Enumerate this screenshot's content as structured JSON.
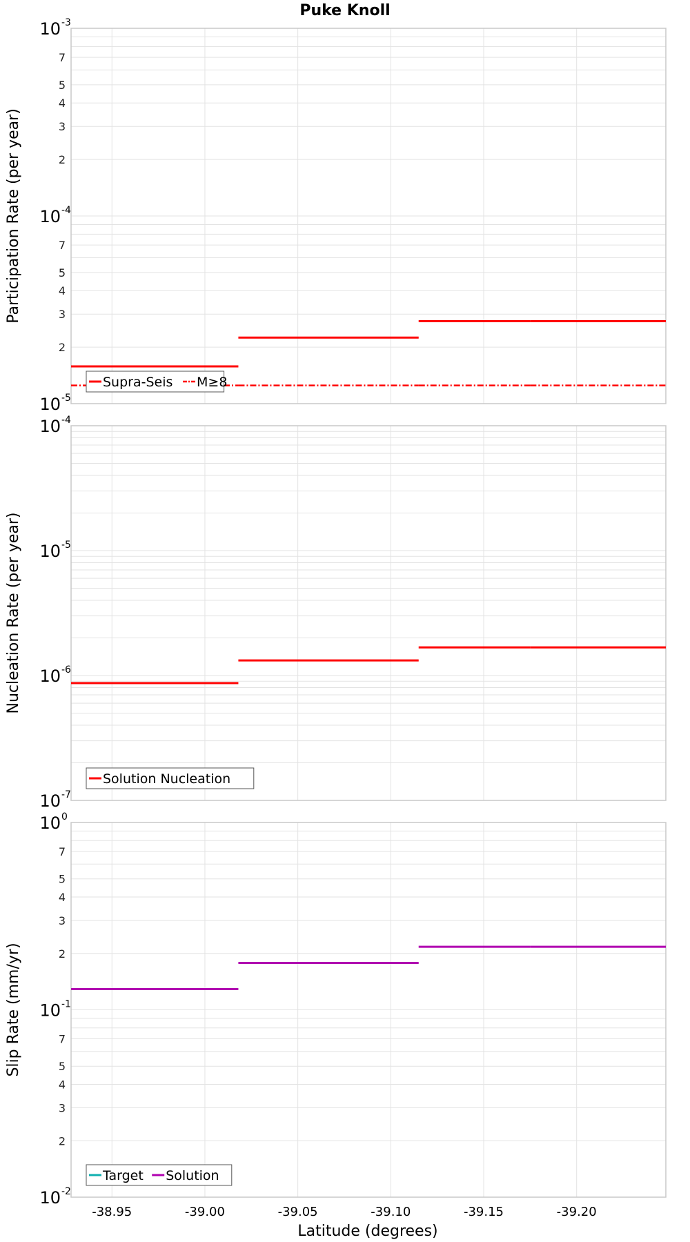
{
  "title": "Puke Knoll",
  "colors": {
    "red": "#ff0000",
    "purple": "#b000b0",
    "cyan": "#10b0b0",
    "grid": "#e3e3e3",
    "frame": "#c8c8c8"
  },
  "chart_data": [
    {
      "type": "line",
      "id": "participation",
      "ylabel": "Participation Rate (per year)",
      "yscale": "log",
      "ylim": [
        1e-05,
        0.001
      ],
      "decade_labels": [
        {
          "base": "10",
          "exp": "-3"
        },
        {
          "base": "10",
          "exp": "-4"
        },
        {
          "base": "10",
          "exp": "-5"
        }
      ],
      "minor_labels": [
        "7",
        "5",
        "4",
        "3",
        "2"
      ],
      "series": [
        {
          "name": "Supra-Seis",
          "color": "#ff0000",
          "style": "solid",
          "segments": [
            {
              "x": [
                -38.928,
                -39.018
              ],
              "y": 1.58e-05
            },
            {
              "x": [
                -39.018,
                -39.115
              ],
              "y": 2.25e-05
            },
            {
              "x": [
                -39.115,
                -39.175
              ],
              "y": 2.75e-05
            },
            {
              "x": [
                -39.175,
                -39.248
              ],
              "y": 2.75e-05
            }
          ]
        },
        {
          "name": "M≥8",
          "color": "#ff0000",
          "style": "dashdot",
          "segments": [
            {
              "x": [
                -38.928,
                -39.018
              ],
              "y": 1.25e-05
            },
            {
              "x": [
                -39.018,
                -39.115
              ],
              "y": 1.25e-05
            },
            {
              "x": [
                -39.115,
                -39.175
              ],
              "y": 1.25e-05
            },
            {
              "x": [
                -39.175,
                -39.248
              ],
              "y": 1.25e-05
            }
          ]
        }
      ],
      "legend": [
        {
          "label": "Supra-Seis",
          "color": "#ff0000",
          "style": "solid"
        },
        {
          "label": "M≥8",
          "color": "#ff0000",
          "style": "dashdot"
        }
      ],
      "legend_position": "bottom-left"
    },
    {
      "type": "line",
      "id": "nucleation",
      "ylabel": "Nucleation Rate (per year)",
      "yscale": "log",
      "ylim": [
        1e-07,
        0.0001
      ],
      "decade_labels": [
        {
          "base": "10",
          "exp": "-4"
        },
        {
          "base": "10",
          "exp": "-5"
        },
        {
          "base": "10",
          "exp": "-6"
        },
        {
          "base": "10",
          "exp": "-7"
        }
      ],
      "minor_labels": [],
      "series": [
        {
          "name": "Solution Nucleation",
          "color": "#ff0000",
          "style": "solid",
          "segments": [
            {
              "x": [
                -38.928,
                -39.018
              ],
              "y": 8.7e-07
            },
            {
              "x": [
                -39.018,
                -39.115
              ],
              "y": 1.32e-06
            },
            {
              "x": [
                -39.115,
                -39.175
              ],
              "y": 1.68e-06
            },
            {
              "x": [
                -39.175,
                -39.248
              ],
              "y": 1.68e-06
            }
          ]
        }
      ],
      "legend": [
        {
          "label": "Solution Nucleation",
          "color": "#ff0000",
          "style": "solid"
        }
      ],
      "legend_position": "bottom-left"
    },
    {
      "type": "line",
      "id": "slip",
      "ylabel": "Slip Rate (mm/yr)",
      "xlabel": "Latitude (degrees)",
      "yscale": "log",
      "ylim": [
        0.01,
        1
      ],
      "decade_labels": [
        {
          "base": "10",
          "exp": "0"
        },
        {
          "base": "10",
          "exp": "-1"
        },
        {
          "base": "10",
          "exp": "-2"
        }
      ],
      "minor_labels": [
        "7",
        "5",
        "4",
        "3",
        "2"
      ],
      "xlim": [
        -38.928,
        -39.248
      ],
      "xticks": [
        "-38.95",
        "-39.00",
        "-39.05",
        "-39.10",
        "-39.15",
        "-39.20"
      ],
      "xtick_values": [
        -38.95,
        -39.0,
        -39.05,
        -39.1,
        -39.15,
        -39.2
      ],
      "series": [
        {
          "name": "Target",
          "color": "#10b0b0",
          "style": "solid",
          "segments": []
        },
        {
          "name": "Solution",
          "color": "#b000b0",
          "style": "solid",
          "segments": [
            {
              "x": [
                -38.928,
                -39.018
              ],
              "y": 0.129
            },
            {
              "x": [
                -39.018,
                -39.115
              ],
              "y": 0.178
            },
            {
              "x": [
                -39.115,
                -39.175
              ],
              "y": 0.217
            },
            {
              "x": [
                -39.175,
                -39.248
              ],
              "y": 0.217
            }
          ]
        }
      ],
      "legend": [
        {
          "label": "Target",
          "color": "#10b0b0",
          "style": "solid"
        },
        {
          "label": "Solution",
          "color": "#b000b0",
          "style": "solid"
        }
      ],
      "legend_position": "bottom-left"
    }
  ]
}
